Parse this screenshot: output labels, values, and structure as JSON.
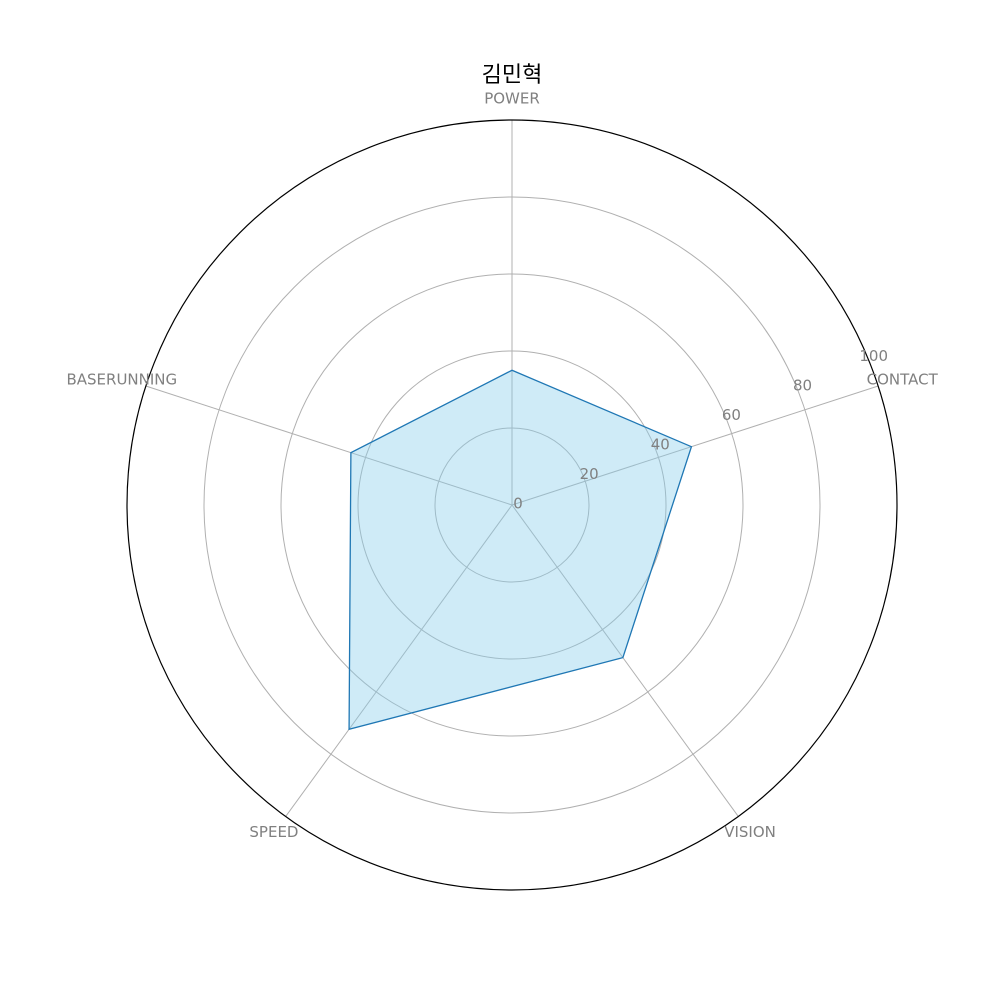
{
  "chart_data": {
    "type": "radar",
    "title": "김민혁",
    "categories": [
      "POWER",
      "CONTACT",
      "VISION",
      "SPEED",
      "BASERUNNING"
    ],
    "series": [
      {
        "values": [
          35,
          49,
          49,
          72,
          44
        ]
      }
    ],
    "rlim": [
      0,
      100
    ],
    "radial_ticks": [
      "0",
      "20",
      "40",
      "60",
      "80",
      "100"
    ],
    "radial_tick_values": [
      0,
      20,
      40,
      60,
      80,
      100
    ],
    "grid": true,
    "colors": {
      "line": "#1f77b4",
      "fill": "#87ceeb",
      "grid": "#b0b0b0",
      "outer": "#000000",
      "label": "#808080"
    }
  }
}
